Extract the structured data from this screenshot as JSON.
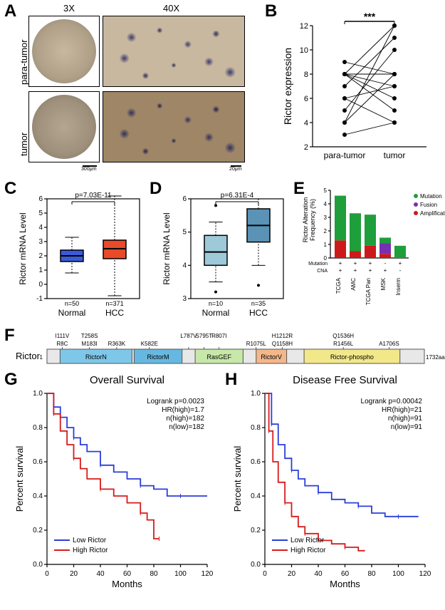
{
  "panels": {
    "A": "A",
    "B": "B",
    "C": "C",
    "D": "D",
    "E": "E",
    "F": "F",
    "G": "G",
    "H": "H"
  },
  "A": {
    "col3x": "3X",
    "col40x": "40X",
    "row_para": "para-tumor",
    "row_tumor": "tumor",
    "scale3x": "300μm",
    "scale40x": "20μm"
  },
  "B": {
    "ylabel": "Rictor expression",
    "x1": "para-tumor",
    "x2": "tumor",
    "sig": "***",
    "yaxis": {
      "min": 2,
      "max": 12,
      "step": 2
    },
    "pairs": [
      {
        "a": 4,
        "b": 8
      },
      {
        "a": 4,
        "b": 12
      },
      {
        "a": 5,
        "b": 10
      },
      {
        "a": 6,
        "b": 7
      },
      {
        "a": 7,
        "b": 11
      },
      {
        "a": 8,
        "b": 8
      },
      {
        "a": 8,
        "b": 7
      },
      {
        "a": 8,
        "b": 6
      },
      {
        "a": 8,
        "b": 12
      },
      {
        "a": 3,
        "b": 4
      },
      {
        "a": 9,
        "b": 8
      },
      {
        "a": 6,
        "b": 4
      },
      {
        "a": 8,
        "b": 5
      }
    ],
    "colors": {
      "point": "#000",
      "line": "#000"
    }
  },
  "C": {
    "ylabel": "Rictor mRNA Level",
    "pval": "p=7.03E-11",
    "x1": "Normal",
    "x2": "HCC",
    "n1": "n=50",
    "n2": "n=371",
    "yaxis": {
      "min": -1,
      "max": 6,
      "step": 1
    },
    "normal": {
      "q1": 1.6,
      "med": 2.0,
      "q3": 2.4,
      "wlo": 0.8,
      "whi": 3.3,
      "color": "#3a5bd8"
    },
    "hcc": {
      "q1": 1.8,
      "med": 2.5,
      "q3": 3.1,
      "wlo": -0.8,
      "whi": 6.2,
      "color": "#e84a2a"
    }
  },
  "D": {
    "ylabel": "Rictor mRNA Level",
    "pval": "p=6.31E-4",
    "x1": "Normal",
    "x2": "HCC",
    "n1": "n=10",
    "n2": "n=35",
    "yaxis": {
      "min": 3,
      "max": 6,
      "step": 1
    },
    "normal": {
      "q1": 4.0,
      "med": 4.4,
      "q3": 4.9,
      "wlo": 3.5,
      "whi": 5.3,
      "color": "#9ec9d9",
      "outliers": [
        3.2,
        5.8
      ]
    },
    "hcc": {
      "q1": 4.7,
      "med": 5.2,
      "q3": 5.7,
      "wlo": 4.0,
      "whi": 6.0,
      "color": "#5a93b5",
      "outliers": [
        3.4
      ]
    }
  },
  "E": {
    "ylabel": "Rictor Alteration\nFrequency (%)",
    "legend": [
      "Mutation",
      "Fusion",
      "Amplification"
    ],
    "legend_colors": {
      "Mutation": "#1f9e3c",
      "Fusion": "#7a2fb0",
      "Amplification": "#cc1a1a"
    },
    "yaxis": {
      "min": 0,
      "max": 5,
      "step": 1
    },
    "bars": [
      {
        "label": "TCGA",
        "mut": "+",
        "cna": "+",
        "amp": 1.3,
        "fus": 0,
        "mutv": 3.3
      },
      {
        "label": "AMC",
        "mut": "+",
        "cna": "+",
        "amp": 0.5,
        "fus": 0,
        "mutv": 2.8
      },
      {
        "label": "TCGA Pan",
        "mut": "+",
        "cna": "+",
        "amp": 0.9,
        "fus": 0,
        "mutv": 2.3
      },
      {
        "label": "MSK",
        "mut": "-",
        "cna": "+",
        "amp": 0.3,
        "fus": 0.8,
        "mutv": 0.4
      },
      {
        "label": "Inserm",
        "mut": "+",
        "cna": "-",
        "amp": 0,
        "fus": 0,
        "mutv": 0.9
      }
    ],
    "rowlbl_mut": "Mutation",
    "rowlbl_cna": "CNA"
  },
  "F": {
    "gene": "Rictor",
    "n1": "1",
    "nend": "1732aa",
    "domains": [
      {
        "name": "RictorN",
        "start": 60,
        "end": 390,
        "color": "#7fc7e8"
      },
      {
        "name": "RictorM",
        "start": 400,
        "end": 620,
        "color": "#66b8e0"
      },
      {
        "name": "RasGEF",
        "start": 680,
        "end": 900,
        "color": "#c7e8a8"
      },
      {
        "name": "RictorV",
        "start": 960,
        "end": 1100,
        "color": "#f2b78a"
      },
      {
        "name": "Rictor-phospho",
        "start": 1180,
        "end": 1620,
        "color": "#f2e88a"
      }
    ],
    "mutations_top": [
      "I111V",
      "T258S",
      "",
      "",
      "L787V",
      "S795T",
      "R807I",
      "",
      "H1212R",
      "Q1536H",
      ""
    ],
    "mutations_bot": [
      "R8C",
      "M183I",
      "R363K",
      "K582E",
      "",
      "",
      "",
      "R1075L",
      "Q1158H",
      "R1456L",
      "A1706S"
    ],
    "mut_x": [
      70,
      195,
      320,
      470,
      650,
      720,
      790,
      960,
      1080,
      1360,
      1570
    ]
  },
  "G": {
    "title": "Overall Survival",
    "ylabel": "Percent survival",
    "xlabel": "Months",
    "stats": [
      "Logrank p=0.0023",
      "HR(high)=1.7",
      "n(high)=182",
      "n(low)=182"
    ],
    "xaxis": {
      "min": 0,
      "max": 120,
      "step": 20
    },
    "yaxis": {
      "min": 0,
      "max": 1.0,
      "step": 0.2
    },
    "low_color": "#2a3ed8",
    "high_color": "#d81a1a",
    "legend_low": "Low  Rictor",
    "legend_high": "High Rictor",
    "low": [
      [
        0,
        1.0
      ],
      [
        5,
        0.92
      ],
      [
        10,
        0.86
      ],
      [
        15,
        0.8
      ],
      [
        20,
        0.74
      ],
      [
        25,
        0.7
      ],
      [
        30,
        0.66
      ],
      [
        40,
        0.58
      ],
      [
        50,
        0.54
      ],
      [
        60,
        0.5
      ],
      [
        70,
        0.46
      ],
      [
        80,
        0.44
      ],
      [
        90,
        0.4
      ],
      [
        100,
        0.4
      ],
      [
        110,
        0.4
      ],
      [
        120,
        0.4
      ]
    ],
    "high": [
      [
        0,
        1.0
      ],
      [
        5,
        0.88
      ],
      [
        10,
        0.78
      ],
      [
        15,
        0.7
      ],
      [
        20,
        0.62
      ],
      [
        25,
        0.56
      ],
      [
        30,
        0.5
      ],
      [
        40,
        0.44
      ],
      [
        50,
        0.4
      ],
      [
        60,
        0.36
      ],
      [
        70,
        0.3
      ],
      [
        75,
        0.26
      ],
      [
        80,
        0.15
      ],
      [
        84,
        0.15
      ]
    ]
  },
  "H": {
    "title": "Disease Free Survival",
    "ylabel": "Percent survival",
    "xlabel": "Months",
    "stats": [
      "Logrank p=0.00042",
      "HR(high)=21",
      "n(high)=91",
      "n(low)=91"
    ],
    "xaxis": {
      "min": 0,
      "max": 120,
      "step": 20
    },
    "yaxis": {
      "min": 0,
      "max": 1.0,
      "step": 0.2
    },
    "low_color": "#2a3ed8",
    "high_color": "#d81a1a",
    "legend_low": "Low  Rictor",
    "legend_high": "High Rictor",
    "low": [
      [
        0,
        1.0
      ],
      [
        5,
        0.82
      ],
      [
        10,
        0.7
      ],
      [
        15,
        0.62
      ],
      [
        20,
        0.55
      ],
      [
        25,
        0.5
      ],
      [
        30,
        0.46
      ],
      [
        40,
        0.42
      ],
      [
        50,
        0.38
      ],
      [
        60,
        0.36
      ],
      [
        70,
        0.34
      ],
      [
        80,
        0.3
      ],
      [
        90,
        0.28
      ],
      [
        100,
        0.28
      ],
      [
        115,
        0.28
      ]
    ],
    "high": [
      [
        0,
        1.0
      ],
      [
        3,
        0.78
      ],
      [
        6,
        0.6
      ],
      [
        10,
        0.48
      ],
      [
        15,
        0.36
      ],
      [
        20,
        0.28
      ],
      [
        25,
        0.22
      ],
      [
        30,
        0.18
      ],
      [
        40,
        0.14
      ],
      [
        50,
        0.12
      ],
      [
        60,
        0.1
      ],
      [
        70,
        0.08
      ],
      [
        75,
        0.08
      ]
    ]
  }
}
